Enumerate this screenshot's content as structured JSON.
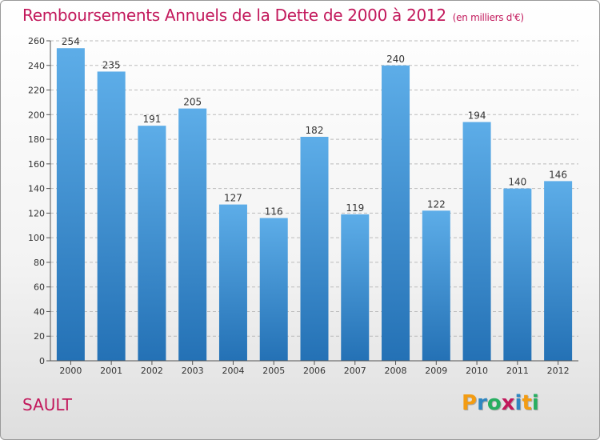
{
  "header": {
    "title": "Remboursements Annuels de la Dette de 2000 à 2012",
    "unit": "(en milliers d'€)"
  },
  "commune": "SAULT",
  "logo": {
    "letters": [
      "P",
      "r",
      "o",
      "x",
      "i",
      "t",
      "i"
    ],
    "colors": [
      "#f39c12",
      "#2e86c1",
      "#27ae60",
      "#c2185b",
      "#2e86c1",
      "#f39c12",
      "#27ae60"
    ]
  },
  "chart_data": {
    "type": "bar",
    "title": "Remboursements Annuels de la Dette de 2000 à 2012",
    "ylabel": "(en milliers d'€)",
    "xlabel": "",
    "categories": [
      "2000",
      "2001",
      "2002",
      "2003",
      "2004",
      "2005",
      "2006",
      "2007",
      "2008",
      "2009",
      "2010",
      "2011",
      "2012"
    ],
    "values": [
      254,
      235,
      191,
      205,
      127,
      116,
      182,
      119,
      240,
      122,
      194,
      140,
      146
    ],
    "ylim": [
      0,
      260
    ],
    "yticks": [
      0,
      20,
      40,
      60,
      80,
      100,
      120,
      140,
      160,
      180,
      200,
      220,
      240,
      260
    ],
    "grid": true,
    "colors": {
      "bar_top": "#5dade8",
      "bar_bottom": "#2471b5",
      "grid": "#bbbbbb"
    }
  }
}
